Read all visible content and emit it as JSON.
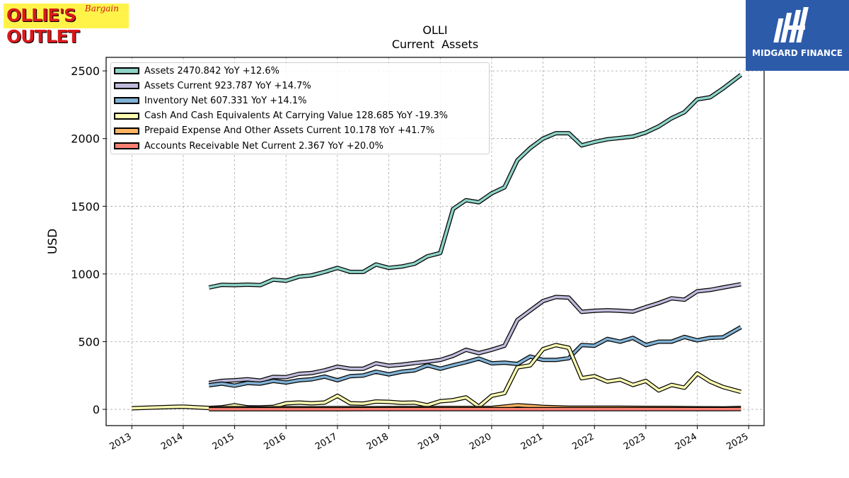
{
  "logos": {
    "left_text": "OLLIE'S OUTLET",
    "left_tag": "Bargain",
    "right_text": "MIDGARD FINANCE"
  },
  "chart_data": {
    "type": "line",
    "title": "OLLI",
    "subtitle": "Current  Assets",
    "ylabel": "USD",
    "xlabel": "",
    "xlim": [
      2012.5,
      2025.3
    ],
    "ylim": [
      -120,
      2600
    ],
    "x_ticks": [
      2013,
      2014,
      2015,
      2016,
      2017,
      2018,
      2019,
      2020,
      2021,
      2022,
      2023,
      2024,
      2025
    ],
    "y_ticks": [
      0,
      500,
      1000,
      1500,
      2000,
      2500
    ],
    "grid": true,
    "legend_position": "top-left",
    "series": [
      {
        "name": "Assets  2470.842 YoY +12.6%",
        "color": "#8dd3c7",
        "points": [
          [
            2014.5,
            900
          ],
          [
            2014.75,
            920
          ],
          [
            2015.0,
            918
          ],
          [
            2015.25,
            921
          ],
          [
            2015.5,
            918
          ],
          [
            2015.75,
            958
          ],
          [
            2016.0,
            950
          ],
          [
            2016.25,
            980
          ],
          [
            2016.5,
            990
          ],
          [
            2016.75,
            1015
          ],
          [
            2017.0,
            1045
          ],
          [
            2017.25,
            1015
          ],
          [
            2017.5,
            1015
          ],
          [
            2017.75,
            1070
          ],
          [
            2018.0,
            1045
          ],
          [
            2018.25,
            1055
          ],
          [
            2018.5,
            1075
          ],
          [
            2018.75,
            1130
          ],
          [
            2019.0,
            1155
          ],
          [
            2019.25,
            1480
          ],
          [
            2019.5,
            1545
          ],
          [
            2019.75,
            1530
          ],
          [
            2020.0,
            1595
          ],
          [
            2020.25,
            1640
          ],
          [
            2020.5,
            1840
          ],
          [
            2020.75,
            1930
          ],
          [
            2021.0,
            2000
          ],
          [
            2021.25,
            2040
          ],
          [
            2021.5,
            2040
          ],
          [
            2021.75,
            1950
          ],
          [
            2022.0,
            1975
          ],
          [
            2022.25,
            1995
          ],
          [
            2022.5,
            2005
          ],
          [
            2022.75,
            2015
          ],
          [
            2023.0,
            2045
          ],
          [
            2023.25,
            2090
          ],
          [
            2023.5,
            2150
          ],
          [
            2023.75,
            2195
          ],
          [
            2024.0,
            2290
          ],
          [
            2024.25,
            2305
          ],
          [
            2024.5,
            2370
          ],
          [
            2024.85,
            2471
          ]
        ]
      },
      {
        "name": "Assets Current  923.787 YoY +14.7%",
        "color": "#bebada",
        "points": [
          [
            2014.5,
            195
          ],
          [
            2014.75,
            210
          ],
          [
            2015.0,
            215
          ],
          [
            2015.25,
            222
          ],
          [
            2015.5,
            212
          ],
          [
            2015.75,
            240
          ],
          [
            2016.0,
            238
          ],
          [
            2016.25,
            262
          ],
          [
            2016.5,
            268
          ],
          [
            2016.75,
            288
          ],
          [
            2017.0,
            315
          ],
          [
            2017.25,
            300
          ],
          [
            2017.5,
            300
          ],
          [
            2017.75,
            340
          ],
          [
            2018.0,
            322
          ],
          [
            2018.25,
            330
          ],
          [
            2018.5,
            342
          ],
          [
            2018.75,
            352
          ],
          [
            2019.0,
            365
          ],
          [
            2019.25,
            395
          ],
          [
            2019.5,
            440
          ],
          [
            2019.75,
            415
          ],
          [
            2020.0,
            440
          ],
          [
            2020.25,
            470
          ],
          [
            2020.5,
            660
          ],
          [
            2020.75,
            730
          ],
          [
            2021.0,
            800
          ],
          [
            2021.25,
            830
          ],
          [
            2021.5,
            825
          ],
          [
            2021.75,
            720
          ],
          [
            2022.0,
            728
          ],
          [
            2022.25,
            732
          ],
          [
            2022.5,
            728
          ],
          [
            2022.75,
            722
          ],
          [
            2023.0,
            755
          ],
          [
            2023.25,
            785
          ],
          [
            2023.5,
            820
          ],
          [
            2023.75,
            810
          ],
          [
            2024.0,
            872
          ],
          [
            2024.25,
            882
          ],
          [
            2024.5,
            900
          ],
          [
            2024.85,
            924
          ]
        ]
      },
      {
        "name": "Inventory Net  607.331 YoY +14.1%",
        "color": "#80b1d3",
        "points": [
          [
            2014.5,
            178
          ],
          [
            2014.75,
            190
          ],
          [
            2015.0,
            175
          ],
          [
            2015.25,
            195
          ],
          [
            2015.5,
            190
          ],
          [
            2015.75,
            210
          ],
          [
            2016.0,
            198
          ],
          [
            2016.25,
            215
          ],
          [
            2016.5,
            222
          ],
          [
            2016.75,
            242
          ],
          [
            2017.0,
            215
          ],
          [
            2017.25,
            245
          ],
          [
            2017.5,
            250
          ],
          [
            2017.75,
            278
          ],
          [
            2018.0,
            258
          ],
          [
            2018.25,
            278
          ],
          [
            2018.5,
            288
          ],
          [
            2018.75,
            325
          ],
          [
            2019.0,
            300
          ],
          [
            2019.25,
            325
          ],
          [
            2019.5,
            348
          ],
          [
            2019.75,
            375
          ],
          [
            2020.0,
            340
          ],
          [
            2020.25,
            345
          ],
          [
            2020.5,
            335
          ],
          [
            2020.75,
            390
          ],
          [
            2021.0,
            365
          ],
          [
            2021.25,
            365
          ],
          [
            2021.5,
            378
          ],
          [
            2021.75,
            475
          ],
          [
            2022.0,
            470
          ],
          [
            2022.25,
            520
          ],
          [
            2022.5,
            500
          ],
          [
            2022.75,
            528
          ],
          [
            2023.0,
            475
          ],
          [
            2023.25,
            500
          ],
          [
            2023.5,
            500
          ],
          [
            2023.75,
            535
          ],
          [
            2024.0,
            510
          ],
          [
            2024.25,
            528
          ],
          [
            2024.5,
            532
          ],
          [
            2024.85,
            607
          ]
        ]
      },
      {
        "name": "Cash And Cash Equivalents At Carrying Value  128.685 YoY -19.3%",
        "color": "#ffffb3",
        "points": [
          [
            2013.0,
            8
          ],
          [
            2013.5,
            15
          ],
          [
            2014.0,
            20
          ],
          [
            2014.5,
            10
          ],
          [
            2014.75,
            15
          ],
          [
            2015.0,
            30
          ],
          [
            2015.25,
            15
          ],
          [
            2015.5,
            15
          ],
          [
            2015.75,
            18
          ],
          [
            2016.0,
            45
          ],
          [
            2016.25,
            50
          ],
          [
            2016.5,
            45
          ],
          [
            2016.75,
            50
          ],
          [
            2017.0,
            100
          ],
          [
            2017.25,
            45
          ],
          [
            2017.5,
            42
          ],
          [
            2017.75,
            58
          ],
          [
            2018.0,
            55
          ],
          [
            2018.25,
            48
          ],
          [
            2018.5,
            50
          ],
          [
            2018.75,
            30
          ],
          [
            2019.0,
            60
          ],
          [
            2019.25,
            68
          ],
          [
            2019.5,
            88
          ],
          [
            2019.75,
            20
          ],
          [
            2020.0,
            100
          ],
          [
            2020.25,
            120
          ],
          [
            2020.5,
            310
          ],
          [
            2020.75,
            325
          ],
          [
            2021.0,
            445
          ],
          [
            2021.25,
            475
          ],
          [
            2021.5,
            455
          ],
          [
            2021.75,
            230
          ],
          [
            2022.0,
            245
          ],
          [
            2022.25,
            205
          ],
          [
            2022.5,
            220
          ],
          [
            2022.75,
            180
          ],
          [
            2023.0,
            210
          ],
          [
            2023.25,
            140
          ],
          [
            2023.5,
            180
          ],
          [
            2023.75,
            160
          ],
          [
            2024.0,
            265
          ],
          [
            2024.25,
            205
          ],
          [
            2024.5,
            165
          ],
          [
            2024.85,
            129
          ]
        ]
      },
      {
        "name": "Prepaid Expense And Other Assets Current  10.178 YoY +41.7%",
        "color": "#fdb462",
        "points": [
          [
            2014.5,
            8
          ],
          [
            2015.0,
            9
          ],
          [
            2015.5,
            7
          ],
          [
            2016.0,
            9
          ],
          [
            2016.5,
            8
          ],
          [
            2017.0,
            9
          ],
          [
            2017.5,
            8
          ],
          [
            2018.0,
            9
          ],
          [
            2018.5,
            9
          ],
          [
            2019.0,
            10
          ],
          [
            2019.5,
            10
          ],
          [
            2020.0,
            11
          ],
          [
            2020.5,
            30
          ],
          [
            2021.0,
            18
          ],
          [
            2021.5,
            12
          ],
          [
            2022.0,
            12
          ],
          [
            2022.5,
            12
          ],
          [
            2023.0,
            11
          ],
          [
            2023.5,
            10
          ],
          [
            2024.0,
            8
          ],
          [
            2024.5,
            7
          ],
          [
            2024.85,
            10
          ]
        ]
      },
      {
        "name": "Accounts Receivable Net Current  2.367 YoY +20.0%",
        "color": "#fb8072",
        "points": [
          [
            2014.5,
            1
          ],
          [
            2015.0,
            1
          ],
          [
            2015.5,
            1
          ],
          [
            2016.0,
            1
          ],
          [
            2016.5,
            1
          ],
          [
            2017.0,
            1
          ],
          [
            2017.5,
            1.5
          ],
          [
            2018.0,
            1.5
          ],
          [
            2018.5,
            1.5
          ],
          [
            2019.0,
            1.5
          ],
          [
            2019.5,
            2
          ],
          [
            2020.0,
            2
          ],
          [
            2020.5,
            2
          ],
          [
            2021.0,
            2
          ],
          [
            2021.5,
            2
          ],
          [
            2022.0,
            2
          ],
          [
            2022.5,
            2
          ],
          [
            2023.0,
            2
          ],
          [
            2023.5,
            2
          ],
          [
            2024.0,
            2
          ],
          [
            2024.5,
            2
          ],
          [
            2024.85,
            2.4
          ]
        ]
      }
    ]
  }
}
